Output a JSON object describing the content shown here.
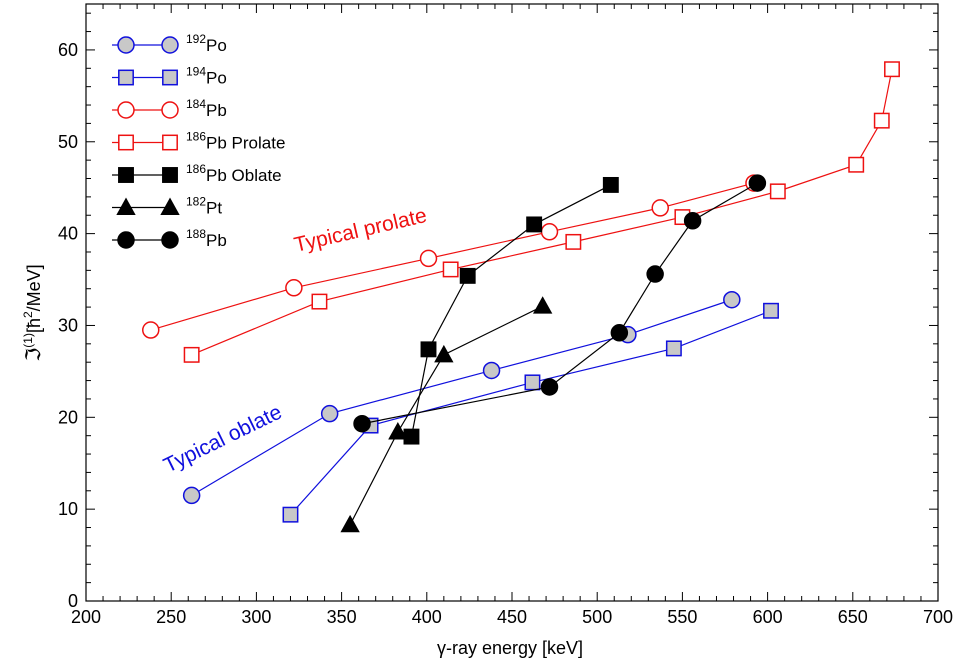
{
  "chart_data": {
    "type": "line",
    "title": "",
    "xlabel": "γ-ray energy [keV]",
    "ylabel": {
      "symbol": "ℑ",
      "superscript": "(1)",
      "unit_open": "[",
      "hbar": "ħ",
      "unit_power": "2",
      "unit_close": "/MeV]"
    },
    "xlim": [
      200,
      700
    ],
    "ylim": [
      0,
      65
    ],
    "xticks": [
      200,
      250,
      300,
      350,
      400,
      450,
      500,
      550,
      600,
      650,
      700
    ],
    "yticks": [
      0,
      10,
      20,
      30,
      40,
      50,
      60
    ],
    "grid": false,
    "legend_position": "top-left",
    "colors": {
      "blue": "#1010dd",
      "red": "#ee1111",
      "black": "#000000",
      "gray_fill": "#c8c8c8"
    },
    "annotations": [
      {
        "text": "Typical prolate",
        "color": "#ee1111"
      },
      {
        "text": "Typical oblate",
        "color": "#1010dd"
      }
    ],
    "series": [
      {
        "name": "Po",
        "mass": "192",
        "suffix": "",
        "marker": "circle",
        "color": "#1010dd",
        "fill": "#c8c8c8",
        "x": [
          262,
          343,
          438,
          518,
          579
        ],
        "y": [
          11.5,
          20.4,
          25.1,
          29.0,
          32.8
        ]
      },
      {
        "name": "Po",
        "mass": "194",
        "suffix": "",
        "marker": "square",
        "color": "#1010dd",
        "fill": "#c8c8c8",
        "x": [
          320,
          367,
          462,
          545,
          602
        ],
        "y": [
          9.4,
          19.1,
          23.8,
          27.5,
          31.6
        ]
      },
      {
        "name": "Pb",
        "mass": "184",
        "suffix": "",
        "marker": "circle",
        "color": "#ee1111",
        "fill": "#ffffff",
        "x": [
          238,
          322,
          401,
          472,
          537,
          592
        ],
        "y": [
          29.5,
          34.1,
          37.3,
          40.2,
          42.8,
          45.5
        ]
      },
      {
        "name": "Pb",
        "mass": "186",
        "suffix": " Prolate",
        "marker": "square",
        "color": "#ee1111",
        "fill": "#ffffff",
        "x": [
          262,
          337,
          414,
          486,
          550,
          606,
          652,
          667,
          673
        ],
        "y": [
          26.8,
          32.6,
          36.1,
          39.1,
          41.8,
          44.6,
          47.5,
          52.3,
          57.9
        ]
      },
      {
        "name": "Pb",
        "mass": "186",
        "suffix": " Oblate",
        "marker": "square",
        "color": "#000000",
        "fill": "#000000",
        "x": [
          391,
          401,
          424,
          463,
          508
        ],
        "y": [
          17.9,
          27.4,
          35.4,
          41.0,
          45.3
        ]
      },
      {
        "name": "Pt",
        "mass": "182",
        "suffix": "",
        "marker": "triangle",
        "color": "#000000",
        "fill": "#000000",
        "x": [
          355,
          383,
          410,
          468
        ],
        "y": [
          8.3,
          18.4,
          26.8,
          32.1
        ]
      },
      {
        "name": "Pb",
        "mass": "188",
        "suffix": "",
        "marker": "circle",
        "color": "#000000",
        "fill": "#000000",
        "x": [
          362,
          472,
          513,
          534,
          556,
          594
        ],
        "y": [
          19.3,
          23.3,
          29.2,
          35.6,
          41.4,
          45.5
        ]
      }
    ]
  }
}
